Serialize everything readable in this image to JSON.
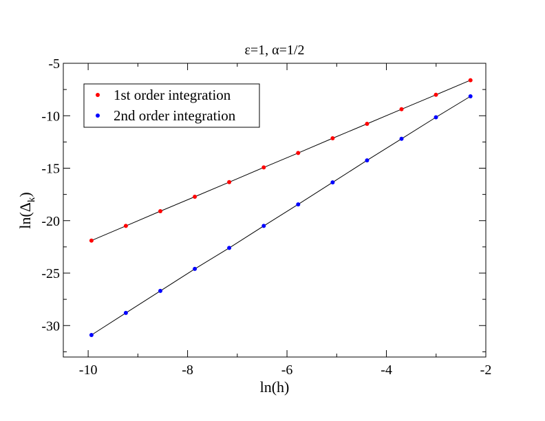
{
  "chart_data": {
    "type": "scatter",
    "title_parts": {
      "eps_symbol": "ε",
      "eps_value": "=1, ",
      "alpha_symbol": "α",
      "alpha_value": "=1/2"
    },
    "xlabel": "ln(h)",
    "ylabel": {
      "prefix": "ln(",
      "symbol": "Δ",
      "subscript": "k",
      "suffix": ")"
    },
    "xlim": [
      -10.5,
      -2
    ],
    "ylim": [
      -33,
      -5
    ],
    "xticks": [
      -10,
      -8,
      -6,
      -4,
      -2
    ],
    "yticks": [
      -5,
      -10,
      -15,
      -20,
      -25,
      -30
    ],
    "legend_position": "top-left",
    "series": [
      {
        "name": "1st order integration",
        "color": "#ff0000",
        "x": [
          -9.934,
          -9.241,
          -8.548,
          -7.855,
          -7.162,
          -6.468,
          -5.775,
          -5.082,
          -4.389,
          -3.696,
          -3.003,
          -2.309
        ],
        "y": [
          -21.9,
          -20.5,
          -19.1,
          -17.72,
          -16.33,
          -14.93,
          -13.55,
          -12.15,
          -10.77,
          -9.38,
          -8.0,
          -6.61
        ]
      },
      {
        "name": "2nd order integration",
        "color": "#0000ff",
        "x": [
          -9.934,
          -9.241,
          -8.548,
          -7.855,
          -7.162,
          -6.468,
          -5.775,
          -5.082,
          -4.389,
          -3.696,
          -3.003,
          -2.309
        ],
        "y": [
          -30.9,
          -28.8,
          -26.7,
          -24.6,
          -22.6,
          -20.5,
          -18.45,
          -16.35,
          -14.25,
          -12.2,
          -10.15,
          -8.15
        ]
      }
    ]
  }
}
